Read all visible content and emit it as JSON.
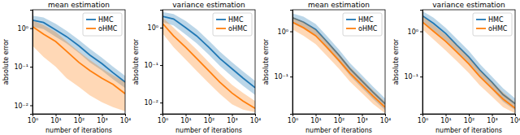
{
  "chart_data": [
    {
      "type": "line",
      "title": "mean estimation",
      "x_label": "number of iterations",
      "y_label": "absolute error",
      "log": true,
      "legend": "upper right",
      "x": [
        1,
        3,
        10,
        30,
        100,
        300,
        1000,
        3000,
        10000
      ],
      "xlim": [
        1,
        10000
      ],
      "xticks": [
        {
          "value": 1,
          "label": "10⁰"
        },
        {
          "value": 10,
          "label": "10¹"
        },
        {
          "value": 100,
          "label": "10²"
        },
        {
          "value": 1000,
          "label": "10³"
        },
        {
          "value": 10000,
          "label": "10⁴"
        }
      ],
      "ylim": [
        0.006,
        3
      ],
      "yticks": [
        {
          "value": 0.01,
          "label": "10⁻²"
        },
        {
          "value": 0.1,
          "label": "10⁻¹"
        },
        {
          "value": 1,
          "label": "10⁰"
        }
      ],
      "series": [
        {
          "name": "HMC",
          "color": "#1f77b4",
          "values": [
            1.6,
            1.4,
            0.9,
            0.6,
            0.35,
            0.2,
            0.12,
            0.07,
            0.04
          ],
          "lower": [
            1.1,
            0.95,
            0.6,
            0.4,
            0.23,
            0.13,
            0.08,
            0.047,
            0.028
          ],
          "upper": [
            2.1,
            1.9,
            1.3,
            0.85,
            0.5,
            0.29,
            0.17,
            0.1,
            0.058
          ]
        },
        {
          "name": "oHMC",
          "color": "#ff7f0e",
          "values": [
            1.1,
            0.7,
            0.45,
            0.25,
            0.13,
            0.08,
            0.05,
            0.035,
            0.02
          ],
          "lower": [
            0.35,
            0.18,
            0.1,
            0.05,
            0.03,
            0.018,
            0.012,
            0.009,
            0.007
          ],
          "upper": [
            1.6,
            1.2,
            0.8,
            0.45,
            0.25,
            0.15,
            0.09,
            0.06,
            0.04
          ]
        }
      ]
    },
    {
      "type": "line",
      "title": "variance estimation",
      "x_label": "number of iterations",
      "y_label": "absolute error",
      "log": true,
      "legend": "upper right",
      "x": [
        1,
        3,
        10,
        30,
        100,
        300,
        1000,
        3000,
        10000
      ],
      "xlim": [
        1,
        10000
      ],
      "xticks": [
        {
          "value": 1,
          "label": "10⁰"
        },
        {
          "value": 10,
          "label": "10¹"
        },
        {
          "value": 100,
          "label": "10²"
        },
        {
          "value": 1000,
          "label": "10³"
        },
        {
          "value": 10000,
          "label": "10⁴"
        }
      ],
      "ylim": [
        0.005,
        3
      ],
      "yticks": [
        {
          "value": 0.01,
          "label": "10⁻²"
        },
        {
          "value": 0.1,
          "label": "10⁻¹"
        },
        {
          "value": 1,
          "label": "10⁰"
        }
      ],
      "series": [
        {
          "name": "HMC",
          "color": "#1f77b4",
          "values": [
            2,
            1.7,
            1,
            0.6,
            0.3,
            0.15,
            0.08,
            0.045,
            0.025
          ],
          "lower": [
            1.4,
            1.15,
            0.65,
            0.38,
            0.19,
            0.095,
            0.05,
            0.028,
            0.016
          ],
          "upper": [
            2.6,
            2.3,
            1.5,
            0.9,
            0.45,
            0.23,
            0.12,
            0.068,
            0.038
          ]
        },
        {
          "name": "oHMC",
          "color": "#ff7f0e",
          "values": [
            1.3,
            0.6,
            0.3,
            0.15,
            0.07,
            0.035,
            0.018,
            0.011,
            0.007
          ],
          "lower": [
            0.7,
            0.3,
            0.14,
            0.07,
            0.033,
            0.017,
            0.009,
            0.0065,
            0.0055
          ],
          "upper": [
            1.9,
            1.0,
            0.5,
            0.26,
            0.12,
            0.06,
            0.03,
            0.018,
            0.011
          ]
        }
      ]
    },
    {
      "type": "line",
      "title": "mean estimation",
      "x_label": "number of iterations",
      "y_label": "absolute error",
      "log": true,
      "legend": "upper right",
      "x": [
        1,
        3,
        10,
        30,
        100,
        300,
        1000,
        3000,
        10000
      ],
      "xlim": [
        1,
        10000
      ],
      "xticks": [
        {
          "value": 1,
          "label": "10⁰"
        },
        {
          "value": 10,
          "label": "10¹"
        },
        {
          "value": 100,
          "label": "10²"
        },
        {
          "value": 1000,
          "label": "10³"
        },
        {
          "value": 10000,
          "label": "10⁴"
        }
      ],
      "ylim": [
        0.015,
        3
      ],
      "yticks": [
        {
          "value": 0.1,
          "label": "10⁻¹"
        },
        {
          "value": 1,
          "label": "10⁰"
        }
      ],
      "series": [
        {
          "name": "HMC",
          "color": "#1f77b4",
          "values": [
            2,
            1.6,
            1.1,
            0.6,
            0.3,
            0.15,
            0.08,
            0.045,
            0.025
          ],
          "lower": [
            1.5,
            1.15,
            0.78,
            0.42,
            0.21,
            0.105,
            0.056,
            0.032,
            0.018
          ],
          "upper": [
            2.5,
            2.1,
            1.45,
            0.8,
            0.4,
            0.2,
            0.107,
            0.06,
            0.033
          ]
        },
        {
          "name": "oHMC",
          "color": "#ff7f0e",
          "values": [
            1.6,
            1.2,
            0.8,
            0.45,
            0.23,
            0.12,
            0.065,
            0.037,
            0.021
          ],
          "lower": [
            1.1,
            0.8,
            0.52,
            0.29,
            0.15,
            0.078,
            0.043,
            0.025,
            0.0155
          ],
          "upper": [
            2.1,
            1.65,
            1.1,
            0.62,
            0.32,
            0.165,
            0.09,
            0.05,
            0.028
          ]
        }
      ]
    },
    {
      "type": "line",
      "title": "variance estimation",
      "x_label": "number of iterations",
      "y_label": "absolute error",
      "log": true,
      "legend": "upper right",
      "x": [
        1,
        3,
        10,
        30,
        100,
        300,
        1000,
        3000,
        10000
      ],
      "xlim": [
        1,
        10000
      ],
      "xticks": [
        {
          "value": 1,
          "label": "10⁰"
        },
        {
          "value": 10,
          "label": "10¹"
        },
        {
          "value": 100,
          "label": "10²"
        },
        {
          "value": 1000,
          "label": "10³"
        },
        {
          "value": 10000,
          "label": "10⁴"
        }
      ],
      "ylim": [
        0.015,
        3
      ],
      "yticks": [
        {
          "value": 0.1,
          "label": "10⁻¹"
        },
        {
          "value": 1,
          "label": "10⁰"
        }
      ],
      "series": [
        {
          "name": "HMC",
          "color": "#1f77b4",
          "values": [
            2.2,
            1.5,
            0.9,
            0.5,
            0.27,
            0.14,
            0.075,
            0.04,
            0.025
          ],
          "lower": [
            1.6,
            1.05,
            0.62,
            0.34,
            0.185,
            0.096,
            0.052,
            0.028,
            0.018
          ],
          "upper": [
            2.8,
            2.0,
            1.2,
            0.68,
            0.37,
            0.19,
            0.1,
            0.055,
            0.033
          ]
        },
        {
          "name": "oHMC",
          "color": "#ff7f0e",
          "values": [
            1.6,
            1.0,
            0.6,
            0.35,
            0.19,
            0.1,
            0.055,
            0.032,
            0.02
          ],
          "lower": [
            1.1,
            0.66,
            0.38,
            0.22,
            0.12,
            0.064,
            0.036,
            0.021,
            0.0155
          ],
          "upper": [
            2.2,
            1.4,
            0.85,
            0.5,
            0.27,
            0.14,
            0.077,
            0.045,
            0.027
          ]
        }
      ]
    }
  ]
}
